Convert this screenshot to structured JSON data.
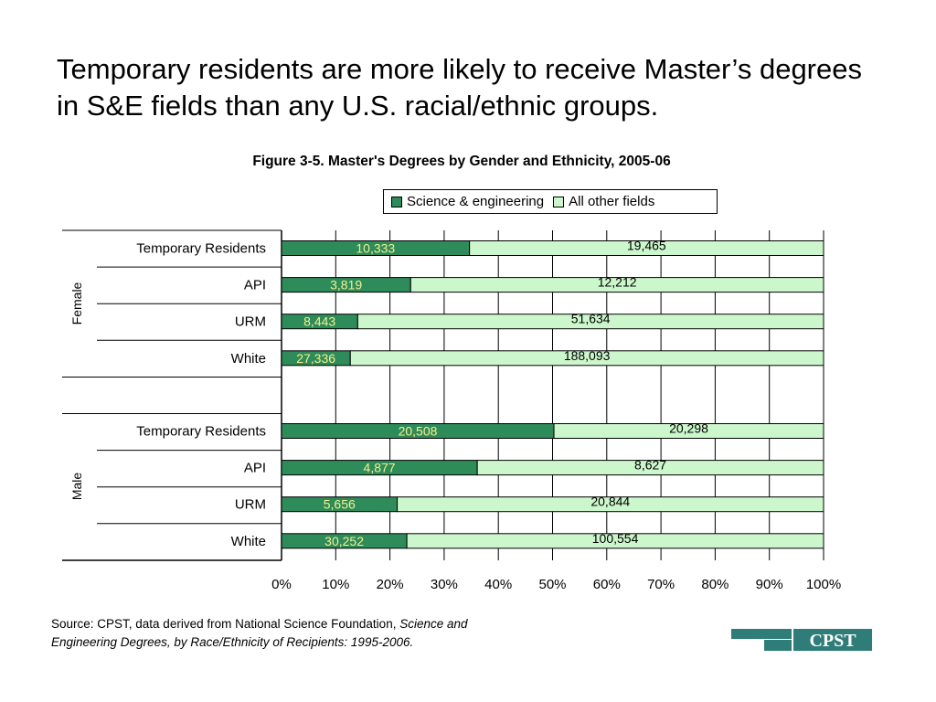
{
  "headline": "Temporary residents are more likely to receive Master’s degrees in S&E fields than any U.S. racial/ethnic groups.",
  "colors": {
    "se": "#2e8b5a",
    "other": "#ccf7cc",
    "se_label": "#f5f08a",
    "other_label": "#000000"
  },
  "chart_data": {
    "type": "bar",
    "orientation": "horizontal",
    "stacked": "percent",
    "title": "Figure 3-5. Master's Degrees by Gender and Ethnicity, 2005-06",
    "legend": {
      "placement": "top-right",
      "entries": [
        "Science & engineering",
        "All other fields"
      ]
    },
    "groups": [
      {
        "label": "Female",
        "categories": [
          "Temporary Residents",
          "API",
          "URM",
          "White"
        ]
      },
      {
        "label": "Male",
        "categories": [
          "Temporary Residents",
          "API",
          "URM",
          "White"
        ]
      }
    ],
    "series": [
      {
        "name": "Science & engineering",
        "values": [
          10333,
          3819,
          8443,
          27336,
          20508,
          4877,
          5656,
          30252
        ],
        "labels": [
          "10,333",
          "3,819",
          "8,443",
          "27,336",
          "20,508",
          "4,877",
          "5,656",
          "30,252"
        ]
      },
      {
        "name": "All other fields",
        "values": [
          19465,
          12212,
          51634,
          188093,
          20298,
          8627,
          20844,
          100554
        ],
        "labels": [
          "19,465",
          "12,212",
          "51,634",
          "188,093",
          "20,298",
          "8,627",
          "20,844",
          "100,554"
        ]
      }
    ],
    "xticks": [
      "0%",
      "10%",
      "20%",
      "30%",
      "40%",
      "50%",
      "60%",
      "70%",
      "80%",
      "90%",
      "100%"
    ],
    "xlim": [
      0,
      100
    ],
    "grid": true
  },
  "source": {
    "prefix": "Source: CPST, data derived from National Science Foundation, ",
    "title_italic_1": "Science and",
    "title_italic_2": "Engineering Degrees, by Race/Ethnicity of Recipients: 1995-2006."
  },
  "logo": {
    "text": "CPST"
  }
}
